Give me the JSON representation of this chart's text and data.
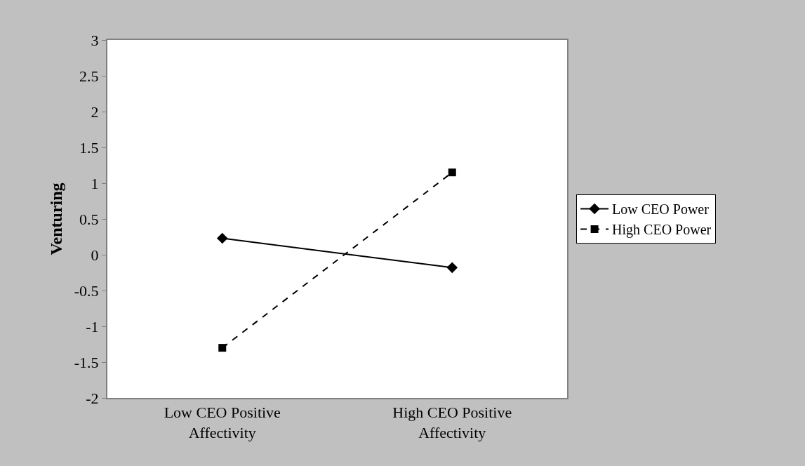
{
  "chart_data": {
    "type": "line",
    "ylabel": "Venturing",
    "categories": [
      "Low CEO Positive Affectivity",
      "High CEO Positive Affectivity"
    ],
    "series": [
      {
        "name": "Low CEO Power",
        "color": "#000000",
        "values": [
          0.23,
          -0.18
        ],
        "marker": "diamond",
        "line_style": "solid"
      },
      {
        "name": "High CEO Power",
        "color": "#000000",
        "values": [
          -1.3,
          1.15
        ],
        "marker": "square",
        "line_style": "dashed"
      }
    ],
    "ylim": [
      -2,
      3
    ],
    "yticks": [
      -2,
      -1.5,
      -1,
      -0.5,
      0,
      0.5,
      1,
      1.5,
      2,
      2.5,
      3
    ],
    "legend": "right"
  }
}
